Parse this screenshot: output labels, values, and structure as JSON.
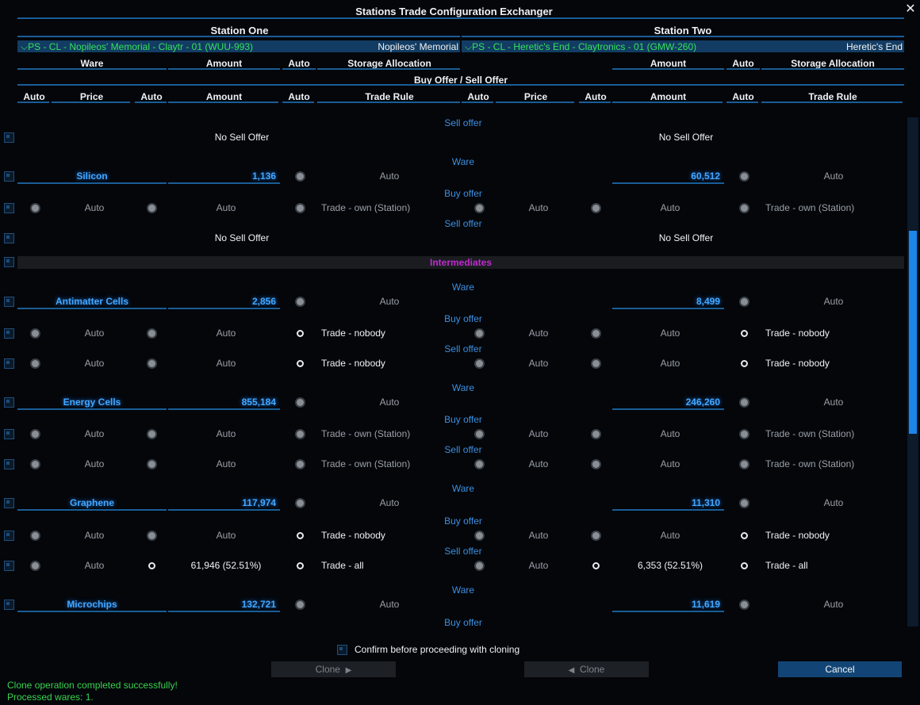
{
  "window": {
    "title": "Stations Trade Configuration Exchanger",
    "close_glyph": "✕"
  },
  "station_one": {
    "heading": "Station One",
    "selector": {
      "glyph": "⌵",
      "value": "PS - CL - Nopileos' Memorial - Claytr - 01 (WUU-993)",
      "short_name": "Nopileos' Memorial"
    }
  },
  "station_two": {
    "heading": "Station Two",
    "selector": {
      "glyph": "⌵",
      "value": "PS - CL - Heretic's End - Claytronics - 01 (GMW-260)",
      "short_name": "Heretic's End"
    }
  },
  "headers": {
    "row1_left": [
      "Ware",
      "Amount",
      "Auto",
      "Storage Allocation"
    ],
    "row1_right": [
      "Amount",
      "Auto",
      "Storage Allocation"
    ],
    "offer_banner": "Buy Offer / Sell Offer",
    "row2_left": [
      "Auto",
      "Price",
      "Auto",
      "Amount",
      "Auto",
      "Trade Rule"
    ],
    "row2_right": [
      "Auto",
      "Price",
      "Auto",
      "Amount",
      "Auto",
      "Trade Rule"
    ]
  },
  "labels": {
    "sell_offer": "Sell offer",
    "buy_offer": "Buy offer",
    "ware": "Ware",
    "no_sell_offer": "No Sell Offer",
    "auto": "Auto"
  },
  "rows": [
    {
      "kind": "label",
      "label": "Sell offer"
    },
    {
      "kind": "none",
      "left": "No Sell Offer",
      "right": "No Sell Offer"
    },
    {
      "kind": "label",
      "label": "Ware"
    },
    {
      "kind": "ware",
      "name": "Silicon",
      "left_amount": "1,136",
      "left_alloc": "Auto",
      "right_amount": "60,512",
      "right_alloc": "Auto"
    },
    {
      "kind": "label",
      "label": "Buy offer"
    },
    {
      "kind": "offer",
      "l_r1": "f",
      "l_price": "Auto",
      "l_r2": "f",
      "l_amount": "Auto",
      "l_r3": "f",
      "l_rule": "Trade - own (Station)",
      "l_rule_white": false,
      "r_r1": "f",
      "r_price": "Auto",
      "r_r2": "f",
      "r_amount": "Auto",
      "r_r3": "f",
      "r_rule": "Trade - own (Station)",
      "r_rule_white": false
    },
    {
      "kind": "label",
      "label": "Sell offer"
    },
    {
      "kind": "none",
      "left": "No Sell Offer",
      "right": "No Sell Offer"
    },
    {
      "kind": "group",
      "label": "Intermediates"
    },
    {
      "kind": "label",
      "label": "Ware"
    },
    {
      "kind": "ware",
      "name": "Antimatter Cells",
      "left_amount": "2,856",
      "left_alloc": "Auto",
      "right_amount": "8,499",
      "right_alloc": "Auto"
    },
    {
      "kind": "label",
      "label": "Buy offer"
    },
    {
      "kind": "offer",
      "l_r1": "f",
      "l_price": "Auto",
      "l_r2": "f",
      "l_amount": "Auto",
      "l_r3": "e",
      "l_rule": "Trade - nobody",
      "l_rule_white": true,
      "r_r1": "f",
      "r_price": "Auto",
      "r_r2": "f",
      "r_amount": "Auto",
      "r_r3": "e",
      "r_rule": "Trade - nobody",
      "r_rule_white": true
    },
    {
      "kind": "label",
      "label": "Sell offer"
    },
    {
      "kind": "offer",
      "l_r1": "f",
      "l_price": "Auto",
      "l_r2": "f",
      "l_amount": "Auto",
      "l_r3": "e",
      "l_rule": "Trade - nobody",
      "l_rule_white": true,
      "r_r1": "f",
      "r_price": "Auto",
      "r_r2": "f",
      "r_amount": "Auto",
      "r_r3": "e",
      "r_rule": "Trade - nobody",
      "r_rule_white": true
    },
    {
      "kind": "label",
      "label": "Ware"
    },
    {
      "kind": "ware",
      "name": "Energy Cells",
      "left_amount": "855,184",
      "left_alloc": "Auto",
      "right_amount": "246,260",
      "right_alloc": "Auto"
    },
    {
      "kind": "label",
      "label": "Buy offer"
    },
    {
      "kind": "offer",
      "l_r1": "f",
      "l_price": "Auto",
      "l_r2": "f",
      "l_amount": "Auto",
      "l_r3": "f",
      "l_rule": "Trade - own (Station)",
      "l_rule_white": false,
      "r_r1": "f",
      "r_price": "Auto",
      "r_r2": "f",
      "r_amount": "Auto",
      "r_r3": "f",
      "r_rule": "Trade - own (Station)",
      "r_rule_white": false
    },
    {
      "kind": "label",
      "label": "Sell offer"
    },
    {
      "kind": "offer",
      "l_r1": "f",
      "l_price": "Auto",
      "l_r2": "f",
      "l_amount": "Auto",
      "l_r3": "f",
      "l_rule": "Trade - own (Station)",
      "l_rule_white": false,
      "r_r1": "f",
      "r_price": "Auto",
      "r_r2": "f",
      "r_amount": "Auto",
      "r_r3": "f",
      "r_rule": "Trade - own (Station)",
      "r_rule_white": false
    },
    {
      "kind": "label",
      "label": "Ware"
    },
    {
      "kind": "ware",
      "name": "Graphene",
      "left_amount": "117,974",
      "left_alloc": "Auto",
      "right_amount": "11,310",
      "right_alloc": "Auto"
    },
    {
      "kind": "label",
      "label": "Buy offer"
    },
    {
      "kind": "offer",
      "l_r1": "f",
      "l_price": "Auto",
      "l_r2": "f",
      "l_amount": "Auto",
      "l_r3": "e",
      "l_rule": "Trade - nobody",
      "l_rule_white": true,
      "r_r1": "f",
      "r_price": "Auto",
      "r_r2": "f",
      "r_amount": "Auto",
      "r_r3": "e",
      "r_rule": "Trade - nobody",
      "r_rule_white": true
    },
    {
      "kind": "label",
      "label": "Sell offer"
    },
    {
      "kind": "offer",
      "l_r1": "f",
      "l_price": "Auto",
      "l_r2": "e",
      "l_amount": "61,946 (52.51%)",
      "l_amount_white": true,
      "l_r3": "e",
      "l_rule": "Trade - all",
      "l_rule_white": true,
      "r_r1": "f",
      "r_price": "Auto",
      "r_r2": "e",
      "r_amount": "6,353 (52.51%)",
      "r_amount_white": true,
      "r_r3": "e",
      "r_rule": "Trade - all",
      "r_rule_white": true
    },
    {
      "kind": "label",
      "label": "Ware"
    },
    {
      "kind": "ware",
      "name": "Microchips",
      "left_amount": "132,721",
      "left_alloc": "Auto",
      "right_amount": "11,619",
      "right_alloc": "Auto"
    },
    {
      "kind": "label",
      "label": "Buy offer"
    }
  ],
  "footer": {
    "confirm_label": "Confirm before proceeding with cloning",
    "clone_right_label": "Clone",
    "clone_right_glyph": "▶",
    "clone_left_label": "Clone",
    "clone_left_glyph": "◀",
    "cancel_label": "Cancel",
    "status_line1": "Clone operation completed successfully!",
    "status_line2": "Processed wares: 1."
  },
  "colors": {
    "accent_blue": "#43a7ff",
    "selector_green": "#35e35a",
    "group_magenta": "#c02bd0",
    "status_green": "#3ad34e"
  }
}
